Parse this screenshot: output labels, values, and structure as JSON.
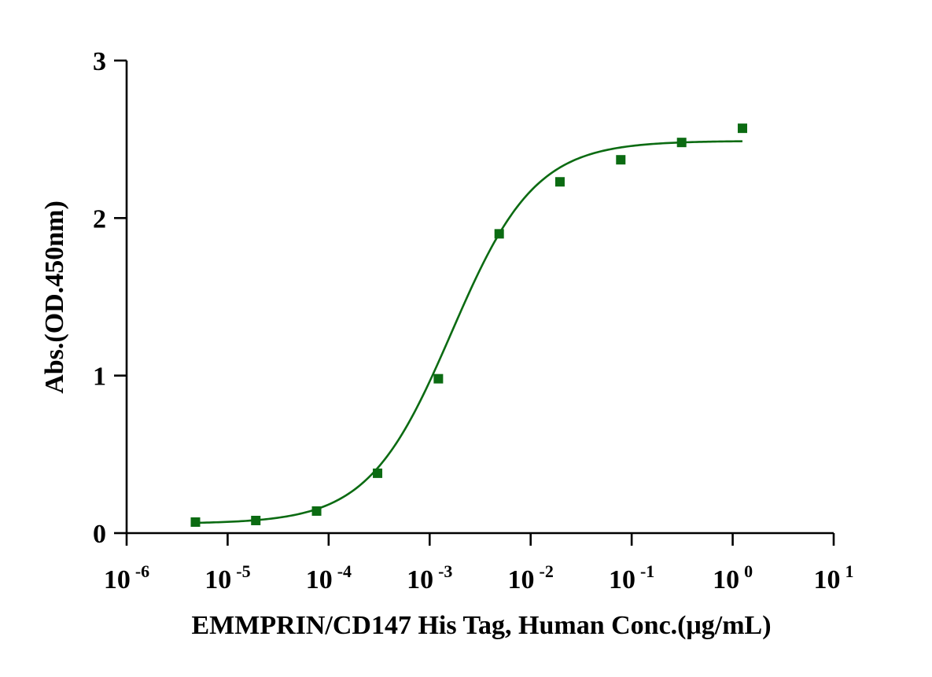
{
  "chart_data": {
    "type": "scatter",
    "xlabel": "EMMPRIN/CD147 His Tag, Human Conc.(μg/mL)",
    "ylabel": "Abs.(OD.450nm)",
    "x_scale": "log",
    "xlim": [
      1e-06,
      10
    ],
    "ylim": [
      0,
      3
    ],
    "x_ticks": [
      {
        "base": "10",
        "exp": "-6"
      },
      {
        "base": "10",
        "exp": "-5"
      },
      {
        "base": "10",
        "exp": "-4"
      },
      {
        "base": "10",
        "exp": "-3"
      },
      {
        "base": "10",
        "exp": "-2"
      },
      {
        "base": "10",
        "exp": "-1"
      },
      {
        "base": "10",
        "exp": "0"
      },
      {
        "base": "10",
        "exp": "1"
      }
    ],
    "y_ticks": [
      "0",
      "1",
      "2",
      "3"
    ],
    "grid": false,
    "legend": "none",
    "marker_color": "#0b6b12",
    "curve_color": "#0b6b12",
    "series": [
      {
        "x": [
          4.8e-06,
          1.9e-05,
          7.6e-05,
          0.000305,
          0.00122,
          0.00488,
          0.0195,
          0.078,
          0.3125,
          1.25
        ],
        "y": [
          0.07,
          0.08,
          0.14,
          0.38,
          0.98,
          1.9,
          2.23,
          2.37,
          2.48,
          2.57
        ]
      }
    ],
    "fit": {
      "model": "4PL",
      "bottom": 0.06,
      "top": 2.49,
      "ec50": 0.00165,
      "hill": 1.05,
      "x_range": [
        4.8e-06,
        1.25
      ]
    }
  }
}
